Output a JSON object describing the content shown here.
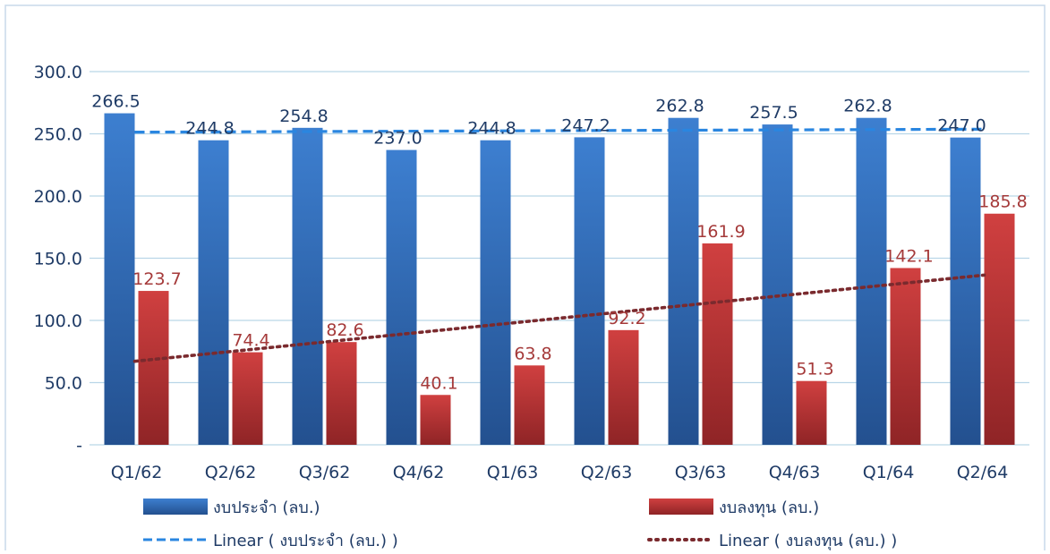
{
  "colors": {
    "series_blue": "#3a78c8",
    "series_red": "#c8393a",
    "trend_blue": "#2a86e0",
    "trend_red": "#7a2a2e",
    "label_blue": "#1f3b66",
    "label_red": "#a53a3a",
    "axis_text": "#1f3b66",
    "grid": "#b9d6e8",
    "border": "#c9d9ea"
  },
  "chart_data": {
    "type": "bar",
    "categories": [
      "Q1/62",
      "Q2/62",
      "Q3/62",
      "Q4/62",
      "Q1/63",
      "Q2/63",
      "Q3/63",
      "Q4/63",
      "Q1/64",
      "Q2/64"
    ],
    "series": [
      {
        "name": "งบประจำ (ลบ.)",
        "values": [
          266.5,
          244.8,
          254.8,
          237.0,
          244.8,
          247.2,
          262.8,
          257.5,
          262.8,
          247.0
        ],
        "labels": [
          "266.5",
          "244.8",
          "254.8",
          "237.0",
          "244.8",
          "247.2",
          "262.8",
          "257.5",
          "262.8",
          "247.0"
        ]
      },
      {
        "name": "งบลงทุน (ลบ.)",
        "values": [
          123.7,
          74.4,
          82.6,
          40.1,
          63.8,
          92.2,
          161.9,
          51.3,
          142.1,
          185.8
        ],
        "labels": [
          "123.7",
          "74.4",
          "82.6",
          "40.1",
          "63.8",
          "92.2",
          "161.9",
          "51.3",
          "142.1",
          "185.8"
        ]
      }
    ],
    "trendlines": [
      {
        "name": "Linear ( งบประจำ (ลบ.) )",
        "series": 0,
        "style": "dashed"
      },
      {
        "name": "Linear ( งบลงทุน (ลบ.) )",
        "series": 1,
        "style": "dotted"
      }
    ],
    "ylim": [
      0,
      300
    ],
    "yticks": [
      0,
      50,
      100,
      150,
      200,
      250,
      300
    ],
    "ytick_labels": [
      "-",
      "50.0",
      "100.0",
      "150.0",
      "200.0",
      "250.0",
      "300.0"
    ],
    "grid": true,
    "legend_position": "bottom",
    "title": "",
    "xlabel": "",
    "ylabel": ""
  }
}
